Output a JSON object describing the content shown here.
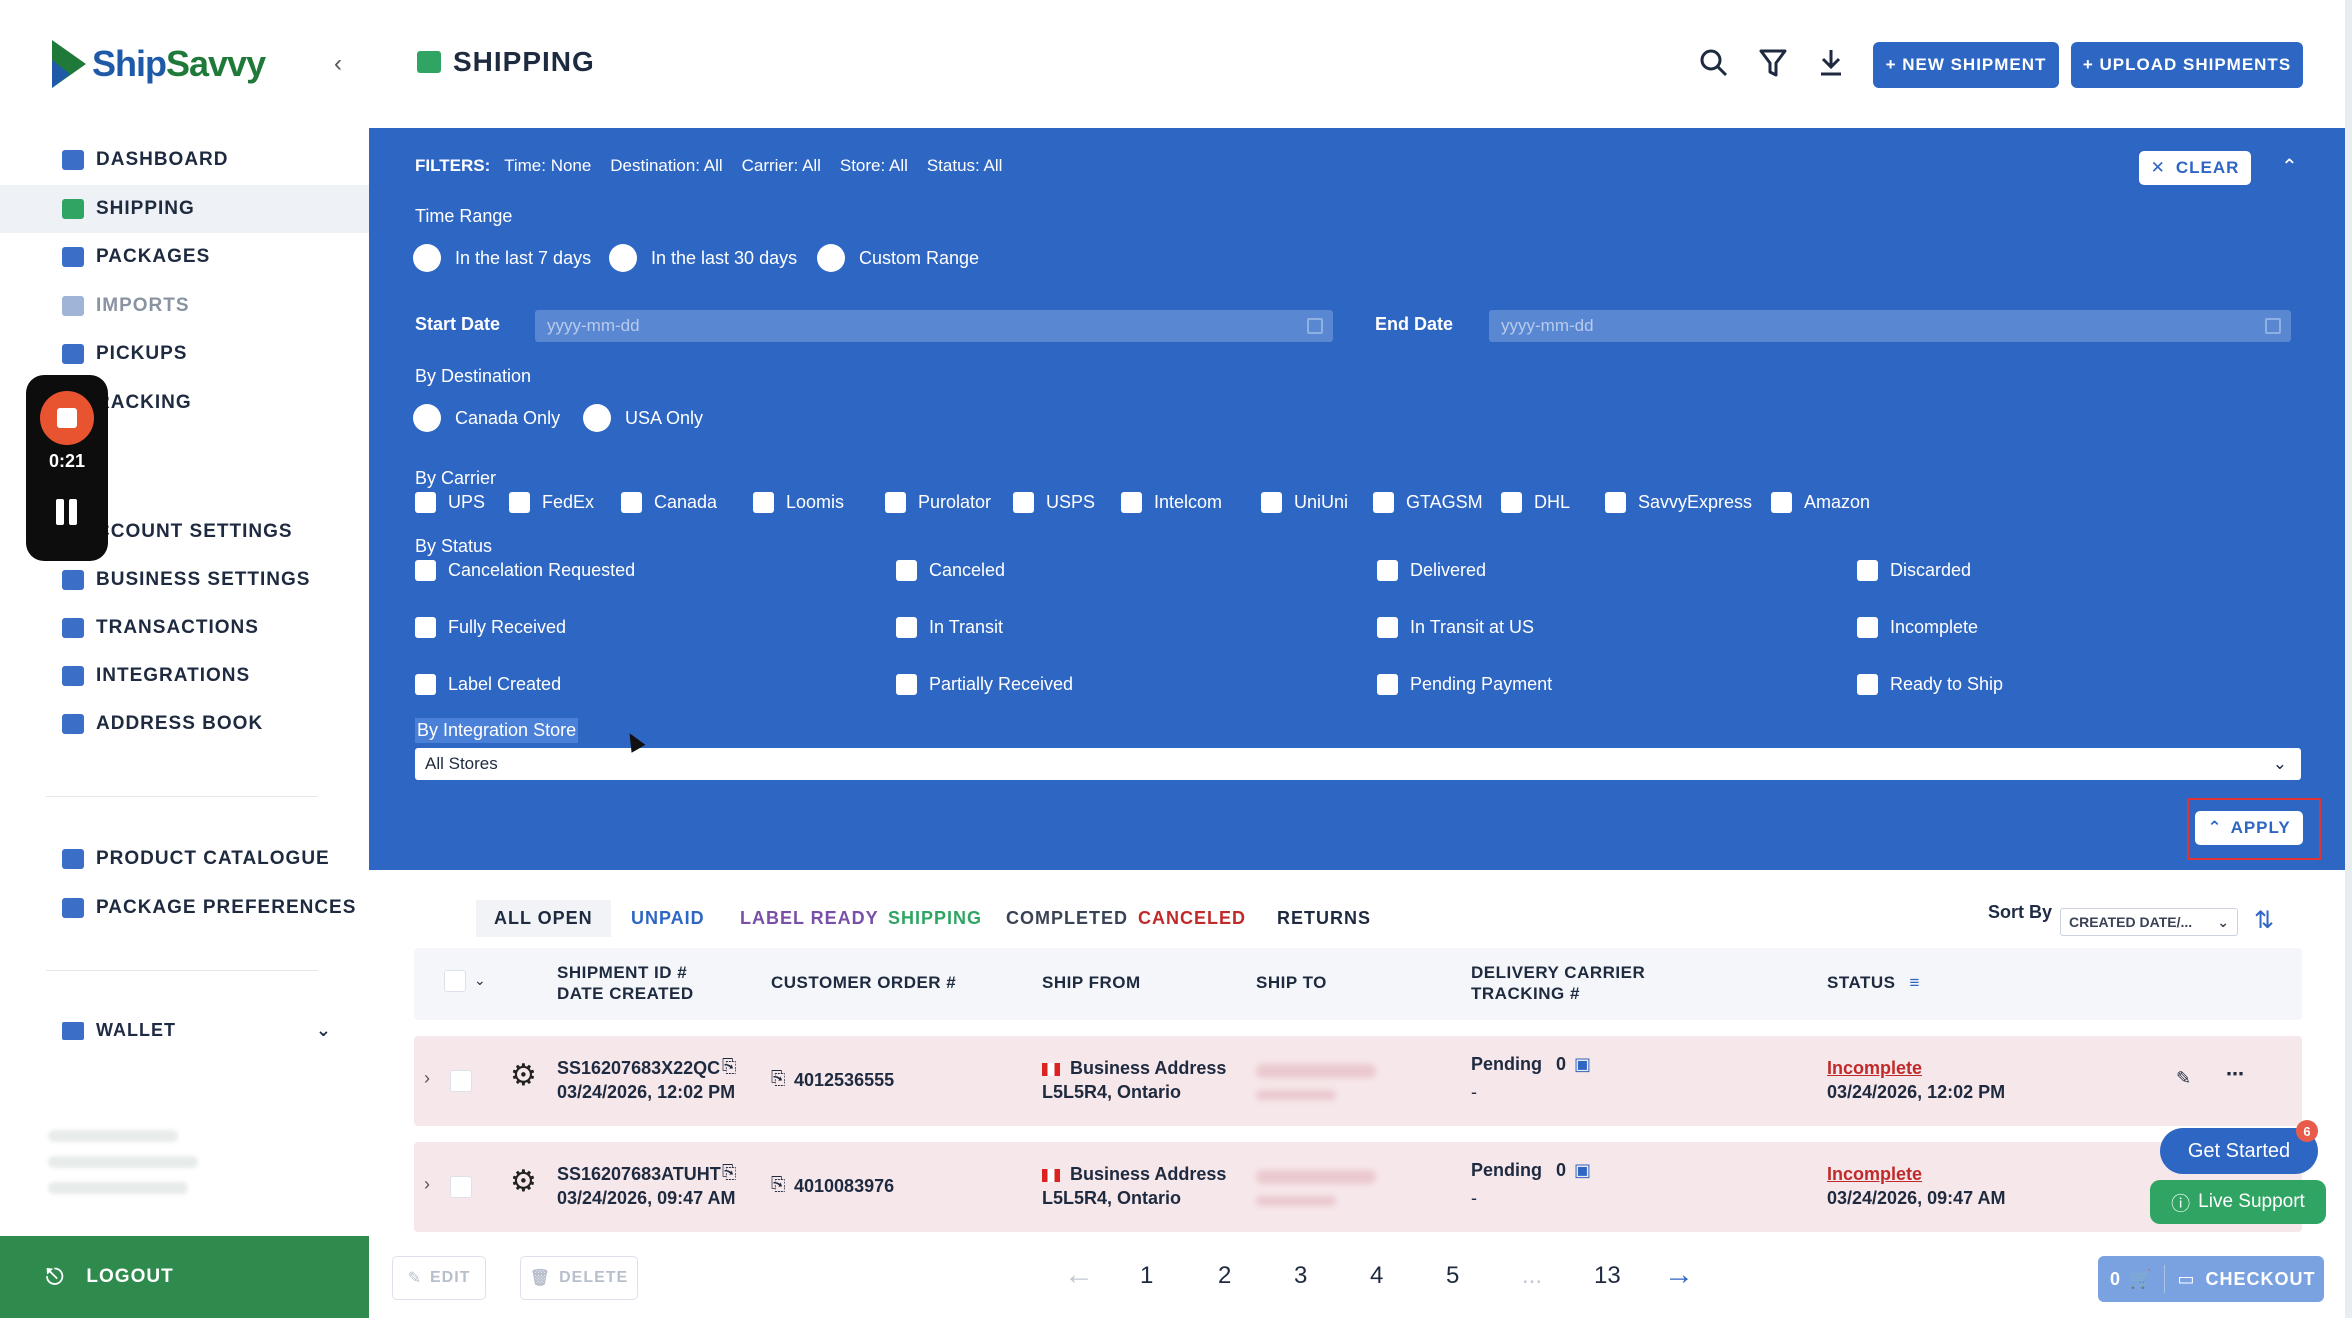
{
  "sidebar": {
    "logo_ship": "Ship",
    "logo_savvy": "Savvy",
    "collapse_icon": "chevron-left-icon",
    "items": [
      {
        "label": "DASHBOARD",
        "icon": "home-icon"
      },
      {
        "label": "SHIPPING",
        "icon": "shipping-icon"
      },
      {
        "label": "PACKAGES",
        "icon": "packages-icon"
      },
      {
        "label": "IMPORTS",
        "icon": "imports-icon"
      },
      {
        "label": "PICKUPS",
        "icon": "pickups-icon"
      },
      {
        "label": "RACKING",
        "icon": "tracking-icon"
      },
      {
        "label": "CCOUNT SETTINGS",
        "icon": "account-icon"
      },
      {
        "label": "BUSINESS SETTINGS",
        "icon": "business-icon"
      },
      {
        "label": "TRANSACTIONS",
        "icon": "transactions-icon"
      },
      {
        "label": "INTEGRATIONS",
        "icon": "integrations-icon"
      },
      {
        "label": "ADDRESS BOOK",
        "icon": "address-book-icon"
      },
      {
        "label": "PRODUCT CATALOGUE",
        "icon": "catalogue-icon"
      },
      {
        "label": "PACKAGE PREFERENCES",
        "icon": "preferences-icon"
      }
    ],
    "wallet": "WALLET",
    "logout": "LOGOUT"
  },
  "recorder": {
    "time": "0:21"
  },
  "header": {
    "title": "SHIPPING",
    "new_shipment": "+ NEW SHIPMENT",
    "upload_shipments": "+ UPLOAD SHIPMENTS"
  },
  "filters": {
    "summary_label": "FILTERS:",
    "summary_time": "Time: None",
    "summary_destination": "Destination: All",
    "summary_carrier": "Carrier: All",
    "summary_store": "Store: All",
    "summary_status": "Status: All",
    "clear": "CLEAR",
    "time_range_label": "Time Range",
    "time_options": [
      "In the last 7 days",
      "In the last 30 days",
      "Custom Range"
    ],
    "start_date_label": "Start Date",
    "start_date_placeholder": "yyyy-mm-dd",
    "end_date_label": "End Date",
    "end_date_placeholder": "yyyy-mm-dd",
    "destination_label": "By Destination",
    "destination_options": [
      "Canada Only",
      "USA Only"
    ],
    "carrier_label": "By Carrier",
    "carriers": [
      "UPS",
      "FedEx",
      "Canada",
      "Loomis",
      "Purolator",
      "USPS",
      "Intelcom",
      "UniUni",
      "GTAGSM",
      "DHL",
      "SavvyExpress",
      "Amazon"
    ],
    "status_label": "By Status",
    "statuses": [
      "Cancelation Requested",
      "Canceled",
      "Delivered",
      "Discarded",
      "Fully Received",
      "In Transit",
      "In Transit at US",
      "Incomplete",
      "Label Created",
      "Partially Received",
      "Pending Payment",
      "Ready to Ship"
    ],
    "store_label": "By Integration Store",
    "store_value": "All Stores",
    "apply": "APPLY"
  },
  "tabs": [
    "ALL OPEN",
    "UNPAID",
    "LABEL READY",
    "SHIPPING",
    "COMPLETED",
    "CANCELED",
    "RETURNS"
  ],
  "tab_colors": [
    "#1e2a3f",
    "#2e66c4",
    "#7a4fa8",
    "#2fa463",
    "#3a4356",
    "#c02a2a",
    "#1e2a3f"
  ],
  "sort": {
    "label": "Sort By",
    "value": "CREATED DATE/..."
  },
  "table": {
    "headers": {
      "shipment_id": "SHIPMENT ID #",
      "date_created": "DATE CREATED",
      "customer_order": "CUSTOMER ORDER #",
      "ship_from": "SHIP FROM",
      "ship_to": "SHIP TO",
      "delivery_carrier": "DELIVERY CARRIER",
      "tracking": "TRACKING #",
      "status": "STATUS"
    },
    "rows": [
      {
        "shipment_id": "SS16207683X22QC",
        "date": "03/24/2026, 12:02 PM",
        "order": "4012536555",
        "from_name": "Business Address",
        "from_addr": "L5L5R4, Ontario",
        "carrier": "Pending",
        "count": "0",
        "tracking": "-",
        "status": "Incomplete",
        "status_date": "03/24/2026, 12:02 PM"
      },
      {
        "shipment_id": "SS16207683ATUHT",
        "date": "03/24/2026, 09:47 AM",
        "order": "4010083976",
        "from_name": "Business Address",
        "from_addr": "L5L5R4, Ontario",
        "carrier": "Pending",
        "count": "0",
        "tracking": "-",
        "status": "Incomplete",
        "status_date": "03/24/2026, 09:47 AM"
      }
    ]
  },
  "footer": {
    "edit": "EDIT",
    "delete": "DELETE",
    "pages": [
      "1",
      "2",
      "3",
      "4",
      "5",
      "...",
      "13"
    ],
    "cart_count": "0",
    "checkout": "CHECKOUT"
  },
  "widgets": {
    "get_started": "Get Started",
    "badge": "6",
    "live_support": "Live Support"
  }
}
